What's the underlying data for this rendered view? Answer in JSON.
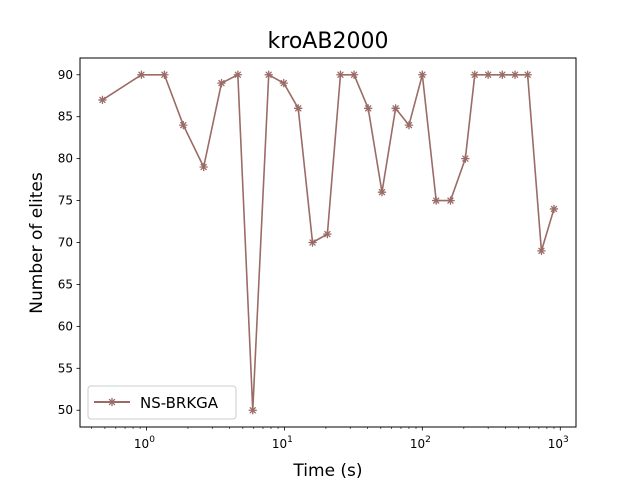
{
  "chart_data": {
    "type": "line",
    "title": "kroAB2000",
    "xlabel": "Time (s)",
    "ylabel": "Number of elites",
    "xscale": "log",
    "xlim": [
      0.33,
      1300
    ],
    "ylim": [
      48,
      92
    ],
    "xticks": [
      {
        "value": 1,
        "base": "10",
        "exp": "0"
      },
      {
        "value": 10,
        "base": "10",
        "exp": "1"
      },
      {
        "value": 100,
        "base": "10",
        "exp": "2"
      },
      {
        "value": 1000,
        "base": "10",
        "exp": "3"
      }
    ],
    "yticks": [
      50,
      55,
      60,
      65,
      70,
      75,
      80,
      85,
      90
    ],
    "grid": false,
    "legend": {
      "position": "lower-left",
      "entries": [
        "NS-BRKGA"
      ]
    },
    "series": [
      {
        "name": "NS-BRKGA",
        "color": "#9b6b66",
        "marker": "asterisk",
        "x": [
          0.48,
          0.92,
          1.35,
          1.85,
          2.6,
          3.5,
          4.6,
          5.9,
          7.7,
          9.9,
          12.6,
          16,
          20.5,
          25.5,
          32,
          40.5,
          51,
          64,
          80,
          100,
          126,
          160,
          205,
          240,
          300,
          380,
          470,
          580,
          730,
          900
        ],
        "values": [
          87,
          90,
          90,
          84,
          79,
          89,
          90,
          50,
          90,
          89,
          86,
          70,
          71,
          90,
          90,
          86,
          76,
          86,
          84,
          90,
          75,
          75,
          80,
          90,
          90,
          90,
          90,
          90,
          69,
          74
        ]
      }
    ]
  }
}
